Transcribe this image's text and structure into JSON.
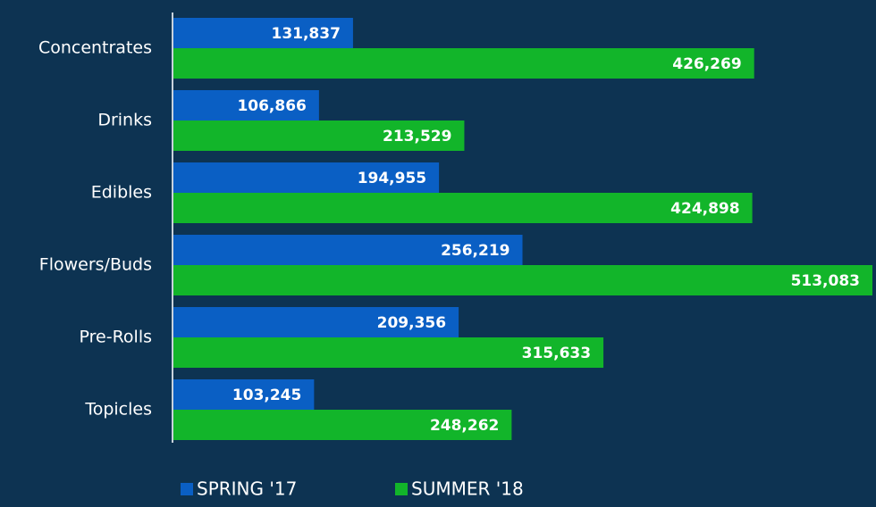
{
  "chart_data": {
    "type": "bar",
    "orientation": "horizontal",
    "categories": [
      "Concentrates",
      "Drinks",
      "Edibles",
      "Flowers/Buds",
      "Pre-Rolls",
      "Topicles"
    ],
    "series": [
      {
        "name": "SPRING '17",
        "color": "#0a5fc4",
        "values": [
          131837,
          106866,
          194955,
          256219,
          209356,
          103245
        ],
        "value_labels": [
          "131,837",
          "106,866",
          "194,955",
          "256,219",
          "209,356",
          "103,245"
        ]
      },
      {
        "name": "SUMMER '18",
        "color": "#12b52a",
        "values": [
          426269,
          213529,
          424898,
          513083,
          315633,
          248262
        ],
        "value_labels": [
          "426,269",
          "213,529",
          "424,898",
          "513,083",
          "315,633",
          "248,262"
        ]
      }
    ],
    "legend": "bottom"
  }
}
